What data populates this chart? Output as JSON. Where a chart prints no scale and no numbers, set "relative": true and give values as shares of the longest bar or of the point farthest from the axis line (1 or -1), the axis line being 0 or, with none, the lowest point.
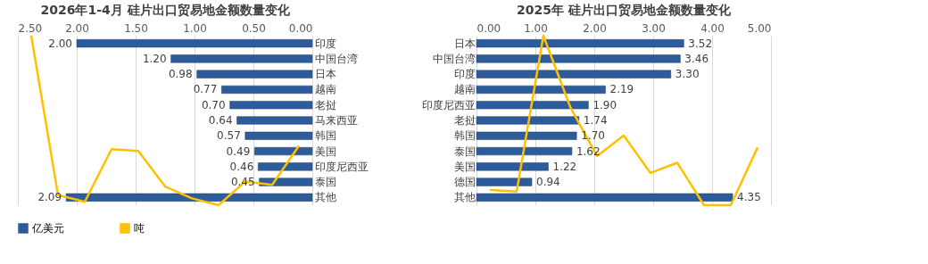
{
  "chart_data": [
    {
      "type": "bar",
      "orientation": "horizontal",
      "title": "2026年1-4月 硅片出口贸易地金额数量变化",
      "categories": [
        "印度",
        "中国台湾",
        "日本",
        "越南",
        "老挝",
        "马来西亚",
        "韩国",
        "美国",
        "印度尼西亚",
        "泰国",
        "其他"
      ],
      "series": [
        {
          "name": "亿美元",
          "color": "#2e5c9a",
          "values": [
            2.0,
            1.2,
            0.98,
            0.77,
            0.7,
            0.64,
            0.57,
            0.49,
            0.46,
            0.45,
            2.09
          ],
          "value_labels": [
            "2.00",
            "1.20",
            "0.98",
            "0.77",
            "0.70",
            "0.64",
            "0.57",
            "0.49",
            "0.46",
            "0.45",
            "2.09"
          ]
        }
      ],
      "xlim": [
        2.5,
        0
      ],
      "xticks": [
        {
          "value": 2.5,
          "label": "2.50"
        },
        {
          "value": 2,
          "label": "2.00"
        },
        {
          "value": 1.5,
          "label": "1.50"
        },
        {
          "value": 1,
          "label": "1.00"
        },
        {
          "value": 0.5,
          "label": "0.50"
        },
        {
          "value": 0,
          "label": "0.00"
        }
      ],
      "grid": "x",
      "legend": "bottom"
    },
    {
      "type": "line",
      "relative": true,
      "categories": [
        null,
        null,
        null,
        null,
        null,
        null,
        null,
        null,
        null,
        null,
        null
      ],
      "series": [
        {
          "name": "吨",
          "color": "#ffc000",
          "values": [
            1.0,
            0.06,
            0.02,
            0.33,
            0.32,
            0.11,
            0.04,
            0,
            0.14,
            0.12,
            0.35
          ]
        }
      ],
      "legend": "bottom",
      "marker": "none"
    },
    {
      "type": "bar",
      "orientation": "horizontal",
      "title": "2025年 硅片出口贸易地金额数量变化",
      "categories": [
        "日本",
        "中国台湾",
        "印度",
        "越南",
        "印度尼西亚",
        "老挝",
        "韩国",
        "泰国",
        "美国",
        "德国",
        "其他"
      ],
      "series": [
        {
          "name": "亿美元",
          "color": "#2e5c9a",
          "values": [
            3.52,
            3.46,
            3.3,
            2.19,
            1.9,
            1.74,
            1.7,
            1.62,
            1.22,
            0.94,
            4.35
          ],
          "value_labels": [
            "3.52",
            "3.46",
            "3.30",
            "2.19",
            "1.90",
            "1.74",
            "1.70",
            "1.62",
            "1.22",
            "0.94",
            "4.35"
          ]
        }
      ],
      "xlim": [
        0,
        5
      ],
      "xticks": [
        {
          "value": 0,
          "label": "0.00"
        },
        {
          "value": 1,
          "label": "1.00"
        },
        {
          "value": 2,
          "label": "2.00"
        },
        {
          "value": 3,
          "label": "3.00"
        },
        {
          "value": 4,
          "label": "4.00"
        },
        {
          "value": 5,
          "label": "5.00"
        }
      ],
      "grid": "x",
      "legend": "bottom"
    },
    {
      "type": "line",
      "relative": true,
      "categories": [
        null,
        null,
        null,
        null,
        null,
        null,
        null,
        null,
        null,
        null,
        null
      ],
      "series": [
        {
          "name": "吨",
          "color": "#ffc000",
          "values": [
            0.09,
            0.08,
            1.0,
            0.58,
            0.29,
            0.41,
            0.19,
            0.25,
            0,
            0,
            0.34
          ]
        }
      ],
      "legend": "bottom",
      "marker": "none"
    }
  ]
}
